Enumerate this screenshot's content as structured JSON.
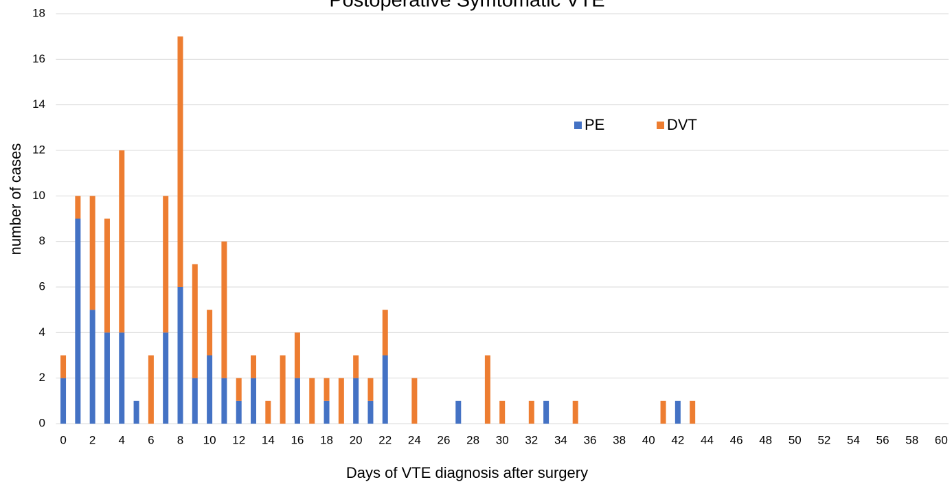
{
  "chart_data": {
    "type": "stacked_bar",
    "title": "Postoperative Symtomatic VTE",
    "x_label": "Days of VTE diagnosis after surgery",
    "y_label": "number of cases",
    "categories": [
      0,
      null,
      2,
      null,
      4,
      null,
      6,
      null,
      8,
      null,
      10,
      null,
      12,
      null,
      14,
      null,
      16,
      null,
      18,
      null,
      20,
      null,
      22,
      null,
      24,
      null,
      26,
      null,
      28,
      null,
      30,
      null,
      32,
      null,
      34,
      null,
      36,
      null,
      38,
      null,
      40,
      null,
      42,
      null,
      44,
      null,
      46,
      null,
      48,
      null,
      50,
      null,
      52,
      null,
      54,
      null,
      56,
      null,
      58,
      null,
      60
    ],
    "series": [
      {
        "name": "PE",
        "color": "#4472c4",
        "values": [
          2,
          9,
          5,
          4,
          4,
          1,
          0,
          4,
          6,
          2,
          3,
          2,
          1,
          2,
          0,
          0,
          2,
          0,
          1,
          0,
          2,
          1,
          3,
          0,
          0,
          0,
          0,
          1,
          0,
          0,
          0,
          0,
          0,
          1,
          0,
          0,
          0,
          0,
          0,
          0,
          0,
          0,
          1,
          0,
          0,
          0,
          0,
          0,
          0,
          0,
          0,
          0,
          0,
          0,
          0,
          0,
          0,
          0,
          0,
          0,
          0
        ]
      },
      {
        "name": "DVT",
        "color": "#ed7d31",
        "values": [
          1,
          1,
          5,
          5,
          8,
          0,
          3,
          6,
          11,
          5,
          2,
          6,
          1,
          1,
          1,
          3,
          2,
          2,
          1,
          2,
          1,
          1,
          2,
          0,
          2,
          0,
          0,
          0,
          0,
          3,
          1,
          0,
          1,
          0,
          0,
          1,
          0,
          0,
          0,
          0,
          0,
          1,
          0,
          1,
          0,
          0,
          0,
          0,
          0,
          0,
          0,
          0,
          0,
          0,
          0,
          0,
          0,
          0,
          0,
          0,
          0
        ]
      }
    ],
    "ylim": [
      0,
      18
    ],
    "yticks": [
      0,
      2,
      4,
      6,
      8,
      10,
      12,
      14,
      16,
      18
    ],
    "grid": true
  }
}
